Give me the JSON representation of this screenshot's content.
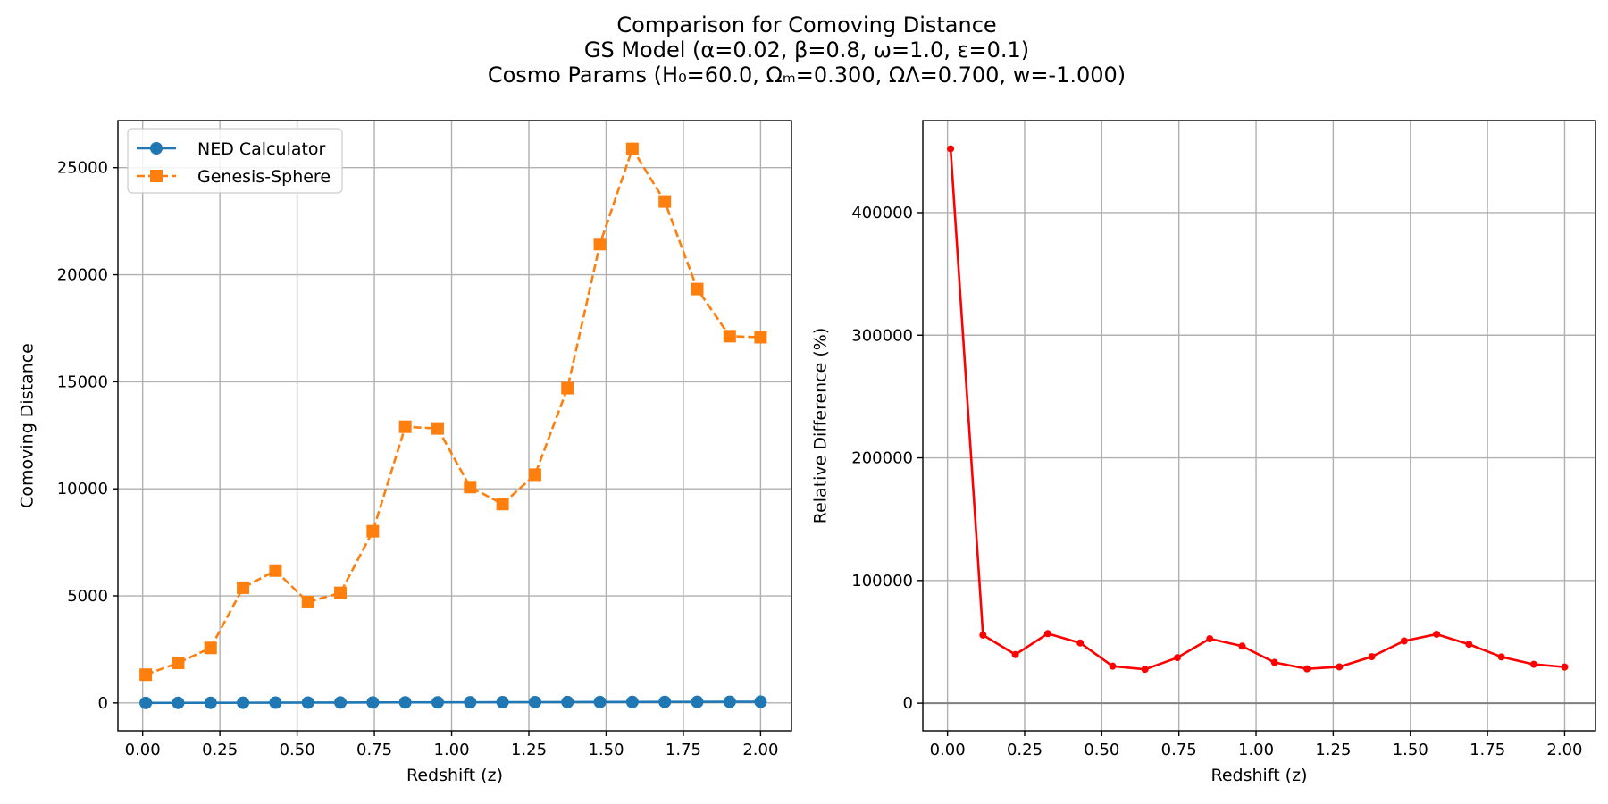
{
  "figure": {
    "title_lines": [
      "Comparison for Comoving Distance",
      "GS Model (α=0.02, β=0.8, ω=1.0, ε=0.1)",
      "Cosmo Params (H₀=60.0, Ωₘ=0.300, ΩΛ=0.700, w=-1.000)"
    ]
  },
  "chart_data": [
    {
      "type": "line",
      "xlabel": "Redshift (z)",
      "ylabel": "Comoving Distance",
      "xlim": [
        -0.08,
        2.1
      ],
      "ylim": [
        -1300,
        27200
      ],
      "xticks": [
        "0.00",
        "0.25",
        "0.50",
        "0.75",
        "1.00",
        "1.25",
        "1.50",
        "1.75",
        "2.00"
      ],
      "yticks": [
        "0",
        "5000",
        "10000",
        "15000",
        "20000",
        "25000"
      ],
      "grid": true,
      "legend_position": "upper-left",
      "x": [
        0.01,
        0.115,
        0.22,
        0.325,
        0.43,
        0.535,
        0.64,
        0.745,
        0.85,
        0.955,
        1.06,
        1.165,
        1.27,
        1.375,
        1.48,
        1.585,
        1.69,
        1.795,
        1.9,
        2.0
      ],
      "series": [
        {
          "name": "NED Calculator",
          "color": "#1f77b4",
          "marker": "circle",
          "linestyle": "solid",
          "values": [
            0.3,
            3.4,
            6.5,
            9.5,
            12.6,
            15.6,
            18.6,
            21.6,
            24.5,
            27.4,
            30.3,
            33.1,
            35.9,
            38.7,
            41.4,
            44.1,
            46.8,
            49.4,
            52.0,
            54.5
          ]
        },
        {
          "name": "Genesis-Sphere",
          "color": "#ff7f0e",
          "marker": "square",
          "linestyle": "dashed",
          "values": [
            1320,
            1870,
            2570,
            5380,
            6180,
            4710,
            5140,
            8020,
            12900,
            12820,
            10080,
            9290,
            10660,
            14700,
            21430,
            25880,
            23420,
            19330,
            17130,
            17080
          ]
        }
      ]
    },
    {
      "type": "line",
      "xlabel": "Redshift (z)",
      "ylabel": "Relative Difference (%)",
      "xlim": [
        -0.08,
        2.1
      ],
      "ylim": [
        -22500,
        475000
      ],
      "xticks": [
        "0.00",
        "0.25",
        "0.50",
        "0.75",
        "1.00",
        "1.25",
        "1.50",
        "1.75",
        "2.00"
      ],
      "yticks": [
        "0",
        "100000",
        "200000",
        "300000",
        "400000"
      ],
      "grid": true,
      "reference_line": {
        "y": 0,
        "color": "#808080"
      },
      "x": [
        0.01,
        0.115,
        0.22,
        0.325,
        0.43,
        0.535,
        0.64,
        0.745,
        0.85,
        0.955,
        1.06,
        1.165,
        1.27,
        1.375,
        1.48,
        1.585,
        1.69,
        1.795,
        1.9,
        2.0
      ],
      "series": [
        {
          "color": "#ff0000",
          "marker": "circle-small",
          "linestyle": "solid",
          "values": [
            452000,
            55500,
            39600,
            56700,
            49100,
            30200,
            27600,
            37100,
            52500,
            46500,
            33200,
            28000,
            29600,
            37900,
            50700,
            56200,
            48000,
            37700,
            31700,
            29500
          ]
        }
      ]
    }
  ]
}
